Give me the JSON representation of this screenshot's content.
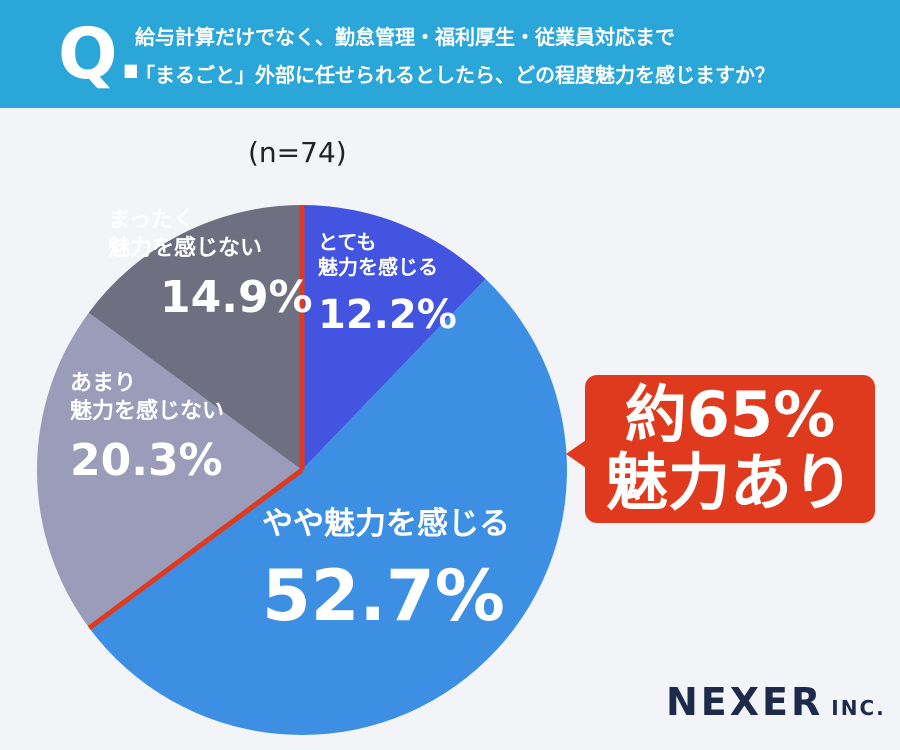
{
  "chart_data": {
    "type": "pie",
    "question_mark": "Q.",
    "title": "給与計算だけでなく、勤怠管理・福利厚生・従業員対応まで\n「まるごと」外部に任せられるとしたら、どの程度魅力を感じますか？",
    "subtitle": "(n=74)",
    "categories": [
      "とても\n魅力を感じる",
      "やや魅力を感じる",
      "あまり\n魅力を感じない",
      "まったく\n魅力を感じない"
    ],
    "values": [
      12.2,
      52.7,
      20.3,
      14.9
    ],
    "value_labels": [
      "12.2%",
      "52.7%",
      "20.3%",
      "14.9%"
    ],
    "colors": [
      "#4254e0",
      "#3d8fe3",
      "#9a9cb9",
      "#6e7082"
    ],
    "annotation": "約65%\n魅力あり",
    "logo": "NEXER",
    "logo_suffix": "INC."
  }
}
